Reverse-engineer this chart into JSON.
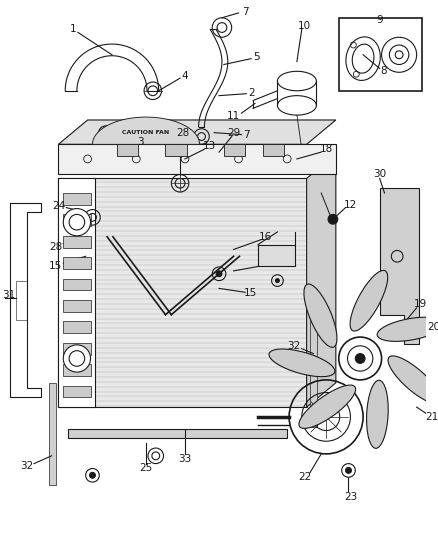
{
  "bg_color": "#ffffff",
  "line_color": "#1a1a1a",
  "fig_width": 4.38,
  "fig_height": 5.33,
  "dpi": 100
}
